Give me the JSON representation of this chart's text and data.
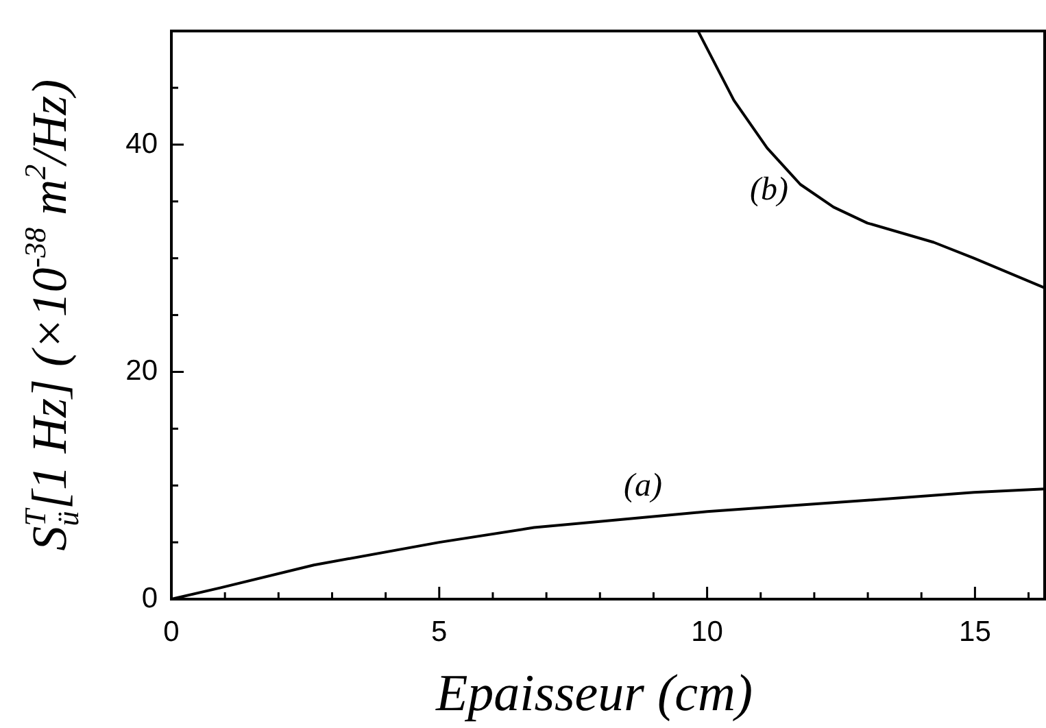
{
  "chart_data": {
    "type": "line",
    "xlabel": "Epaisseur (cm)",
    "ylabel": "S$^{T}$$_{ü}$[1 Hz] (×10$^{-38}$ m$^{2}$/Hz)",
    "xlim": [
      0,
      16.3
    ],
    "ylim": [
      0,
      50
    ],
    "xticks": [
      0,
      {
        "value": 1,
        "label": null
      },
      {
        "value": 2,
        "label": null
      },
      {
        "value": 3,
        "label": null
      },
      {
        "value": 4,
        "label": null
      },
      5,
      {
        "value": 6,
        "label": null
      },
      {
        "value": 7,
        "label": null
      },
      {
        "value": 8,
        "label": null
      },
      {
        "value": 9,
        "label": null
      },
      10,
      {
        "value": 11,
        "label": null
      },
      {
        "value": 12,
        "label": null
      },
      {
        "value": 13,
        "label": null
      },
      {
        "value": 14,
        "label": null
      },
      15,
      {
        "value": 16,
        "label": null
      }
    ],
    "yticks": [
      0,
      {
        "value": 5,
        "label": null
      },
      {
        "value": 10,
        "label": null
      },
      {
        "value": 15,
        "label": null
      },
      20,
      {
        "value": 25,
        "label": null
      },
      {
        "value": 30,
        "label": null
      },
      {
        "value": 35,
        "label": null
      },
      40,
      {
        "value": 45,
        "label": null
      }
    ],
    "series": [
      {
        "name": "(a)",
        "color": "#000000",
        "x": [
          0,
          0.92,
          2.66,
          5,
          6.77,
          10,
          12.99,
          14.98,
          16.3
        ],
        "values": [
          0,
          1.0,
          3.0,
          5.0,
          6.3,
          7.7,
          8.7,
          9.4,
          9.7
        ]
      },
      {
        "name": "(b)",
        "color": "#000000",
        "x": [
          9.83,
          10.5,
          11.12,
          11.74,
          12.36,
          12.99,
          14.23,
          14.98,
          16.3
        ],
        "values": [
          50,
          43.9,
          39.7,
          36.5,
          34.5,
          33.1,
          31.4,
          30.0,
          27.4
        ]
      }
    ],
    "grid": false,
    "legend": false
  }
}
